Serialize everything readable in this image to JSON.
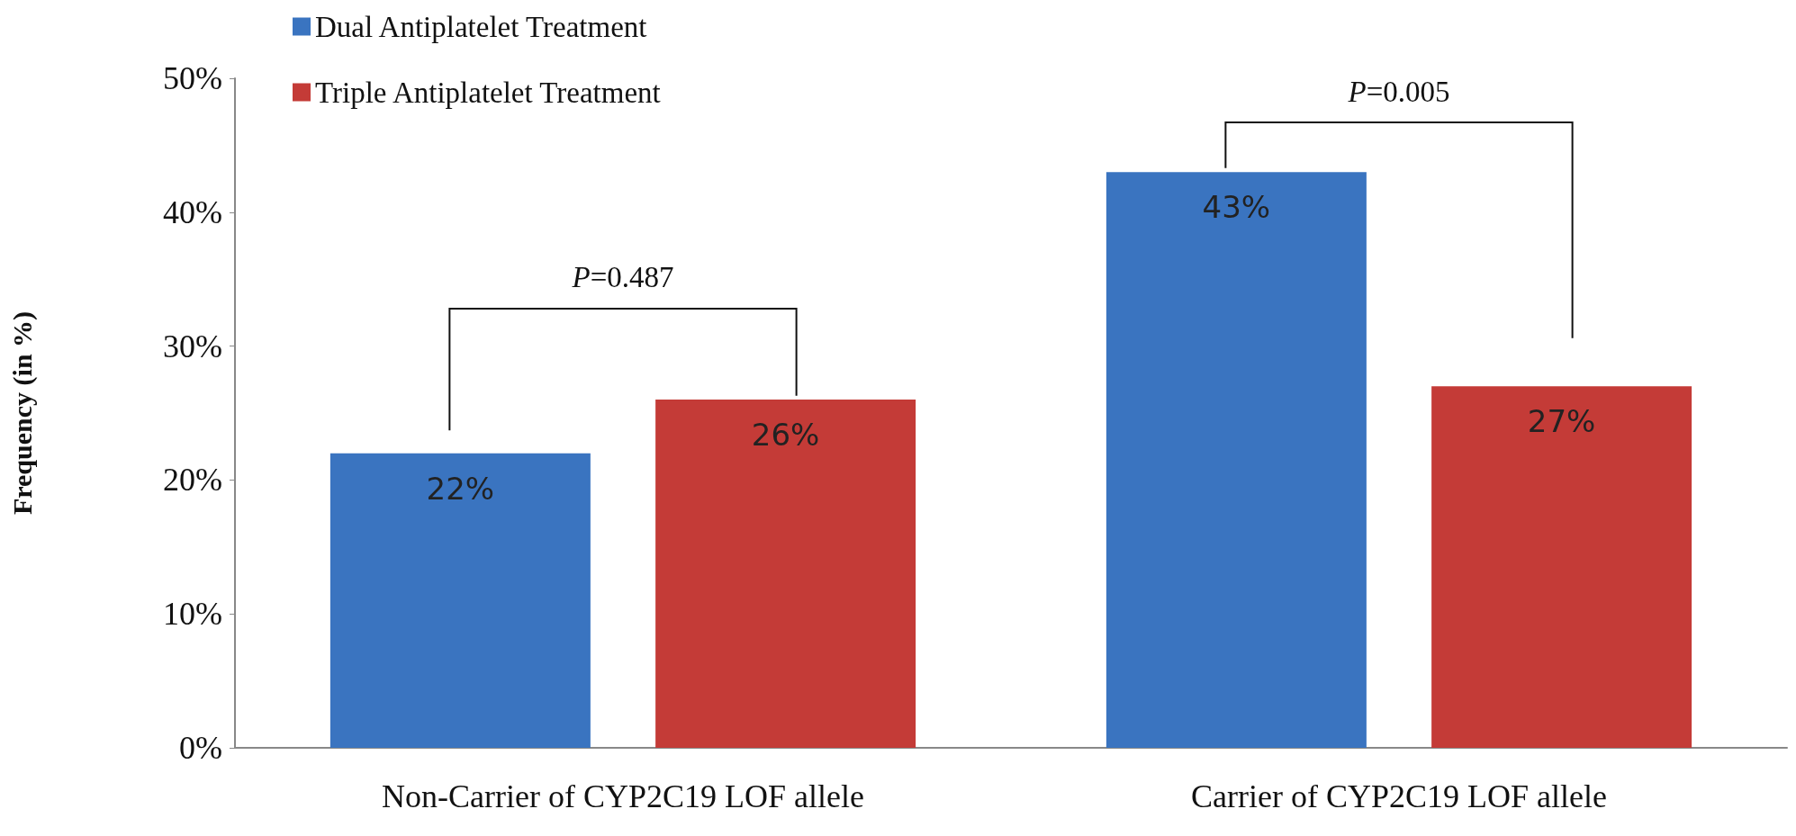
{
  "chart_data": {
    "type": "bar",
    "ylabel": "Frequency (in %)",
    "categories": [
      "Non-Carrier of CYP2C19 LOF allele",
      "Carrier of CYP2C19 LOF allele"
    ],
    "series": [
      {
        "name": "Dual Antiplatelet Treatment",
        "color": "#3a74c0",
        "values": [
          22,
          43
        ],
        "value_labels": [
          "22%",
          "43%"
        ]
      },
      {
        "name": "Triple Antiplatelet Treatment",
        "color": "#c43b37",
        "values": [
          26,
          27
        ],
        "value_labels": [
          "26%",
          "27%"
        ]
      }
    ],
    "ylim": [
      0,
      50
    ],
    "yticks": [
      {
        "value": 0,
        "label": "0%"
      },
      {
        "value": 10,
        "label": "10%"
      },
      {
        "value": 20,
        "label": "20%"
      },
      {
        "value": 30,
        "label": "30%"
      },
      {
        "value": 40,
        "label": "40%"
      },
      {
        "value": 50,
        "label": "50%"
      }
    ],
    "grid": false,
    "legend": "top left",
    "annotations": [
      "P=0.487",
      "P=0.005"
    ]
  }
}
